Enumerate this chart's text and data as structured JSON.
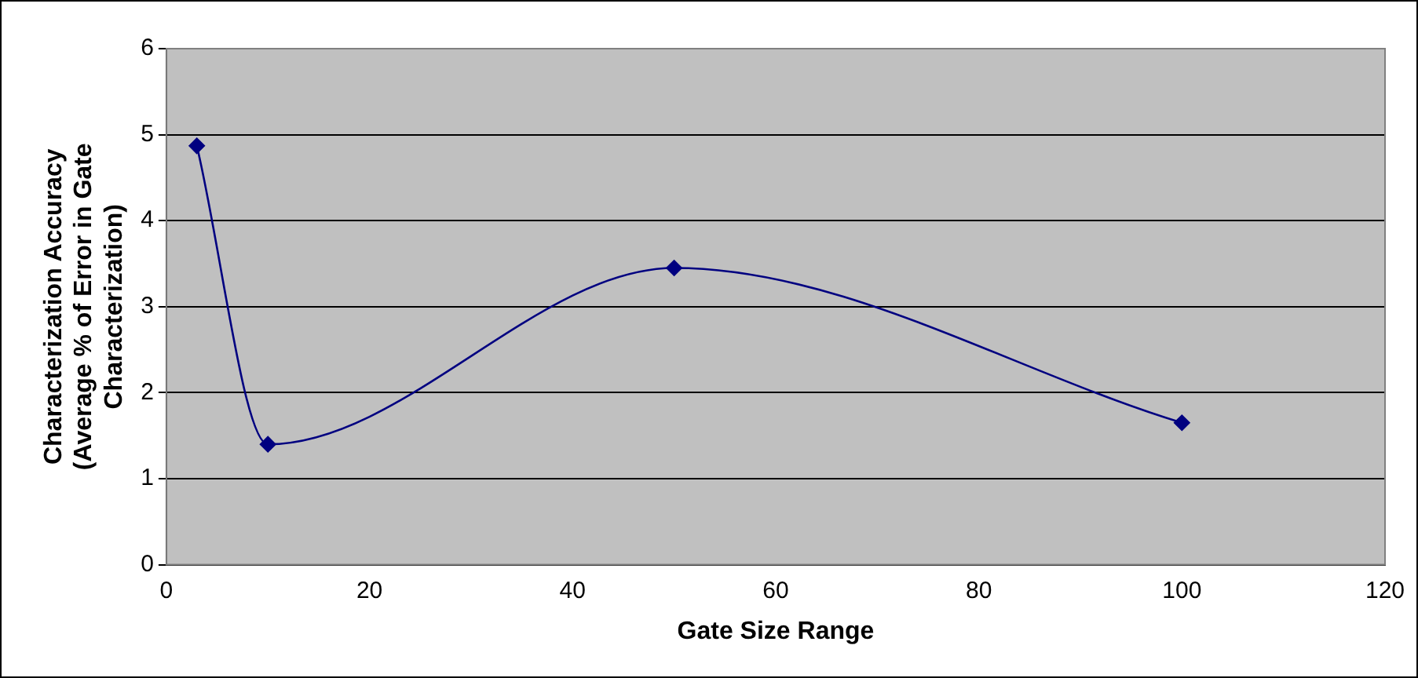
{
  "chart_data": {
    "type": "line",
    "xlabel": "Gate Size Range",
    "ylabel": "Characterization Accuracy\n(Average % of Error in Gate\nCharacterization)",
    "x": [
      3,
      10,
      50,
      100
    ],
    "series": [
      {
        "color": "#000080",
        "values": [
          4.87,
          1.4,
          3.45,
          1.65
        ]
      }
    ],
    "xlim": [
      0,
      120
    ],
    "xticks": [
      0,
      20,
      40,
      60,
      80,
      100,
      120
    ],
    "ylim": [
      0,
      6
    ],
    "yticks": [
      0,
      1,
      2,
      3,
      4,
      5,
      6
    ],
    "grid": "y",
    "legend": false,
    "marker": "diamond",
    "line_style": "solid"
  }
}
